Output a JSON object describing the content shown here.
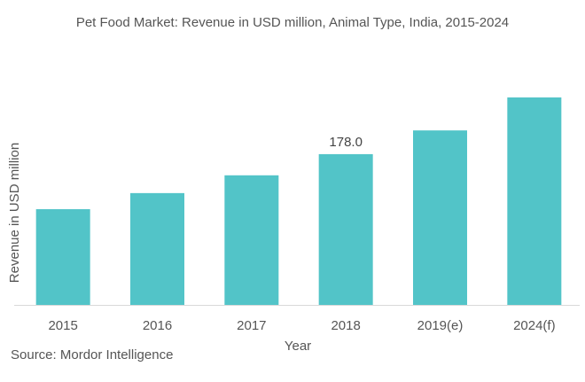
{
  "chart_data": {
    "type": "bar",
    "title": "Pet Food Market: Revenue in USD million, Animal Type, India, 2015-2024",
    "xlabel": "Year",
    "ylabel": "Revenue in USD million",
    "categories": [
      "2015",
      "2016",
      "2017",
      "2018",
      "2019(e)",
      "2024(f)"
    ],
    "values": [
      113,
      132,
      153,
      178.0,
      206,
      245
    ],
    "data_labels": [
      null,
      null,
      null,
      "178.0",
      null,
      null
    ],
    "ylim": [
      0,
      270
    ],
    "grid": false,
    "legend": "none",
    "bar_color": "#52c4c8",
    "axis_color": "#d9d9d9"
  },
  "source": "Source: Mordor Intelligence"
}
